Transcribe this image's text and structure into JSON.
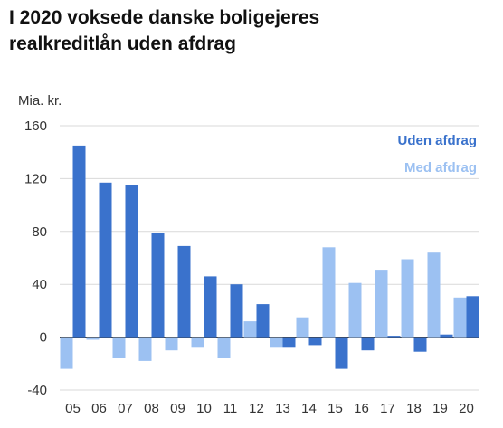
{
  "title_lines": [
    "I 2020 voksede danske boligejeres",
    "realkreditlån uden afdrag"
  ],
  "colors": {
    "uden": "#3a72cc",
    "med": "#9cc1f2",
    "grid": "#d9d9d9",
    "axis": "#333333"
  },
  "chart_data": {
    "type": "bar",
    "title": "I 2020 voksede danske boligejeres realkreditlån uden afdrag",
    "ylabel": "Mia. kr.",
    "xlabel": "",
    "ylim": [
      -40,
      160
    ],
    "yticks": [
      "-40",
      "0",
      "40",
      "80",
      "120",
      "160"
    ],
    "categories": [
      "05",
      "06",
      "07",
      "08",
      "09",
      "10",
      "11",
      "12",
      "13",
      "14",
      "15",
      "16",
      "17",
      "18",
      "19",
      "20"
    ],
    "legend_position": "top-right",
    "grid": true,
    "series": [
      {
        "name": "Med afdrag",
        "color": "#9cc1f2",
        "values": [
          -24,
          -2,
          -16,
          -18,
          -10,
          -8,
          -16,
          12,
          -8,
          15,
          68,
          41,
          51,
          59,
          64,
          30
        ]
      },
      {
        "name": "Uden afdrag",
        "color": "#3a72cc",
        "values": [
          145,
          117,
          115,
          79,
          69,
          46,
          40,
          25,
          -8,
          -6,
          -24,
          -10,
          1,
          -11,
          2,
          31
        ]
      }
    ]
  }
}
